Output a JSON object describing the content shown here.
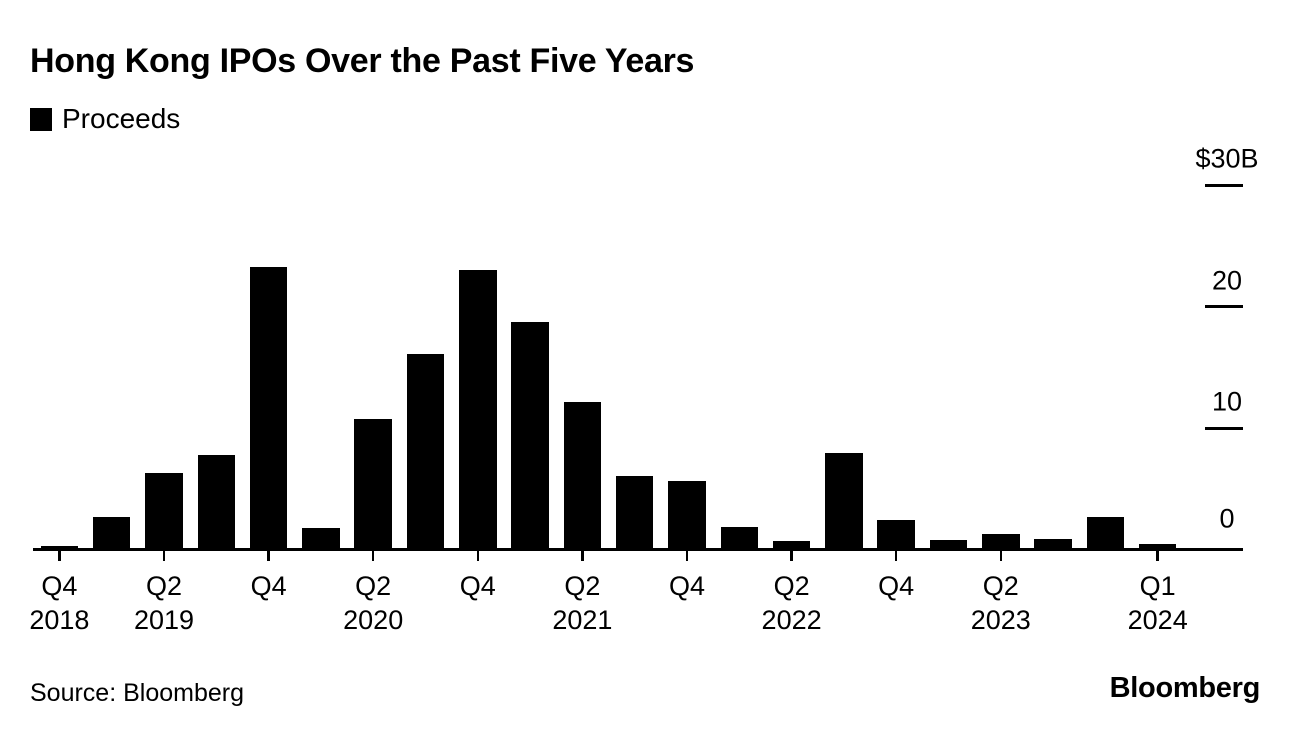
{
  "colors": {
    "bar": "#000000",
    "text": "#000000",
    "background": "#ffffff"
  },
  "header": {
    "title": "Hong Kong IPOs Over the Past Five Years",
    "legend_label": "Proceeds"
  },
  "footer": {
    "source": "Source: Bloomberg",
    "brand": "Bloomberg"
  },
  "chart_data": {
    "type": "bar",
    "title": "Hong Kong IPOs Over the Past Five Years",
    "legend": [
      "Proceeds"
    ],
    "legend_position": "top-left",
    "unit": "$B",
    "xlabel": "",
    "ylabel": "",
    "ylim": [
      0,
      30
    ],
    "grid": false,
    "categories": [
      "Q4 2018",
      "Q1 2019",
      "Q2 2019",
      "Q3 2019",
      "Q4 2019",
      "Q1 2020",
      "Q2 2020",
      "Q3 2020",
      "Q4 2020",
      "Q1 2021",
      "Q2 2021",
      "Q3 2021",
      "Q4 2021",
      "Q1 2022",
      "Q2 2022",
      "Q3 2022",
      "Q4 2022",
      "Q1 2023",
      "Q2 2023",
      "Q3 2023",
      "Q4 2023",
      "Q1 2024"
    ],
    "values": [
      0.3,
      2.7,
      6.3,
      7.8,
      23.3,
      1.8,
      10.8,
      16.1,
      23.0,
      18.7,
      12.2,
      6.1,
      5.7,
      1.9,
      0.7,
      8.0,
      2.5,
      0.8,
      1.3,
      0.9,
      2.7,
      0.5
    ],
    "y_ticks": [
      {
        "value": 30,
        "label": "$30B"
      },
      {
        "value": 20,
        "label": "20"
      },
      {
        "value": 10,
        "label": "10"
      },
      {
        "value": 0,
        "label": "0"
      }
    ],
    "x_ticks": [
      {
        "category": "Q4 2018",
        "quarter": "Q4",
        "year": "2018"
      },
      {
        "category": "Q2 2019",
        "quarter": "Q2",
        "year": "2019"
      },
      {
        "category": "Q4 2019",
        "quarter": "Q4",
        "year": ""
      },
      {
        "category": "Q2 2020",
        "quarter": "Q2",
        "year": "2020"
      },
      {
        "category": "Q4 2020",
        "quarter": "Q4",
        "year": ""
      },
      {
        "category": "Q2 2021",
        "quarter": "Q2",
        "year": "2021"
      },
      {
        "category": "Q4 2021",
        "quarter": "Q4",
        "year": ""
      },
      {
        "category": "Q2 2022",
        "quarter": "Q2",
        "year": "2022"
      },
      {
        "category": "Q4 2022",
        "quarter": "Q4",
        "year": ""
      },
      {
        "category": "Q2 2023",
        "quarter": "Q2",
        "year": "2023"
      },
      {
        "category": "Q1 2024",
        "quarter": "Q1",
        "year": "2024"
      }
    ]
  }
}
